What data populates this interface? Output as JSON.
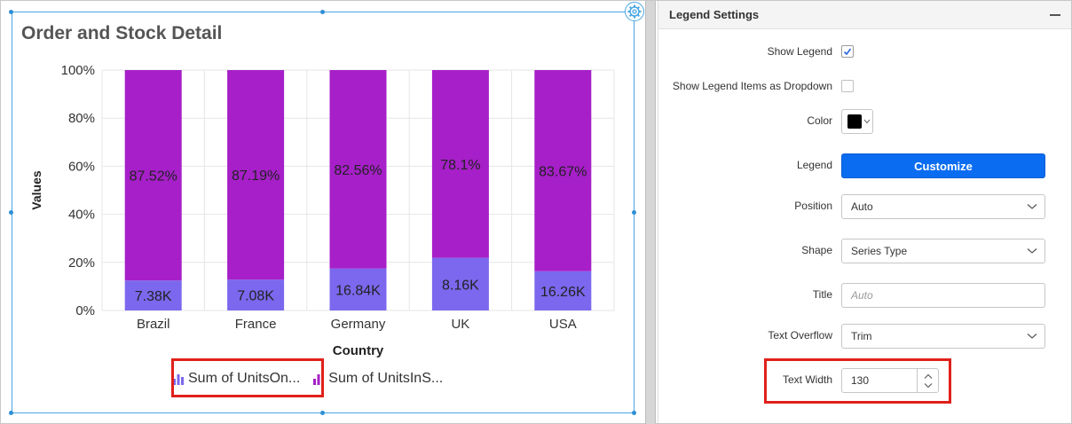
{
  "widget": {
    "title": "Order and Stock Detail"
  },
  "chart_data": {
    "type": "bar",
    "stacked": "100%",
    "categories": [
      "Brazil",
      "France",
      "Germany",
      "UK",
      "USA"
    ],
    "series": [
      {
        "name": "Sum of UnitsOn...",
        "color": "#7b68ee",
        "values": [
          12.48,
          12.81,
          17.44,
          21.9,
          16.33
        ],
        "labels": [
          "7.38K",
          "7.08K",
          "16.84K",
          "8.16K",
          "16.26K"
        ]
      },
      {
        "name": "Sum of UnitsInS...",
        "color": "#a61fc8",
        "values": [
          87.52,
          87.19,
          82.56,
          78.1,
          83.67
        ],
        "labels": [
          "87.52%",
          "87.19%",
          "82.56%",
          "78.1%",
          "83.67%"
        ]
      }
    ],
    "yticks": [
      "0%",
      "20%",
      "40%",
      "60%",
      "80%",
      "100%"
    ],
    "ylim": [
      0,
      100
    ],
    "xlabel": "Country",
    "ylabel": "Values",
    "grid": true,
    "legend": "bottom"
  },
  "panel": {
    "title": "Legend Settings",
    "show_legend_label": "Show Legend",
    "show_dropdown_label": "Show Legend Items as Dropdown",
    "color_label": "Color",
    "legend_label": "Legend",
    "customize_label": "Customize",
    "position_label": "Position",
    "position_value": "Auto",
    "shape_label": "Shape",
    "shape_value": "Series Type",
    "title_label": "Title",
    "title_placeholder": "Auto",
    "overflow_label": "Text Overflow",
    "overflow_value": "Trim",
    "width_label": "Text Width",
    "width_value": "130"
  }
}
